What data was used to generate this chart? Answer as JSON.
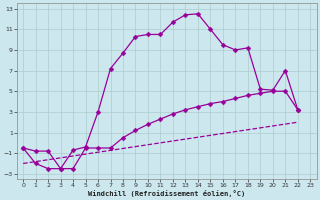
{
  "xlabel": "Windchill (Refroidissement éolien,°C)",
  "background_color": "#cce8ee",
  "grid_color": "#aacccc",
  "line_color": "#990099",
  "xlim": [
    -0.5,
    23.5
  ],
  "ylim": [
    -3.5,
    13.5
  ],
  "xticks": [
    0,
    1,
    2,
    3,
    4,
    5,
    6,
    7,
    8,
    9,
    10,
    11,
    12,
    13,
    14,
    15,
    16,
    17,
    18,
    19,
    20,
    21,
    22,
    23
  ],
  "yticks": [
    -3,
    -1,
    1,
    3,
    5,
    7,
    9,
    11,
    13
  ],
  "line1": {
    "x": [
      0,
      1,
      2,
      3,
      4,
      5,
      6,
      7,
      8,
      9,
      10,
      11,
      12,
      13,
      14,
      15,
      16,
      17,
      18,
      19,
      20,
      21,
      22
    ],
    "y": [
      -0.5,
      -2.0,
      -2.5,
      -2.5,
      -0.7,
      -0.4,
      3.0,
      7.2,
      8.7,
      10.3,
      10.5,
      10.5,
      11.7,
      12.4,
      12.5,
      11.0,
      9.5,
      9.0,
      9.2,
      5.2,
      5.1,
      7.0,
      3.2
    ]
  },
  "line2": {
    "x": [
      0,
      1,
      2,
      3,
      4,
      5,
      6,
      7,
      8,
      9,
      10,
      11,
      12,
      13,
      14,
      15,
      16,
      17,
      18,
      19,
      20,
      21,
      22
    ],
    "y": [
      -0.5,
      -0.8,
      -0.8,
      -2.5,
      -2.5,
      -0.5,
      -0.5,
      -0.5,
      0.5,
      1.2,
      1.8,
      2.3,
      2.8,
      3.2,
      3.5,
      3.8,
      4.0,
      4.3,
      4.6,
      4.8,
      5.0,
      5.0,
      3.2
    ]
  },
  "line3": {
    "x": [
      0,
      22
    ],
    "y": [
      -2.0,
      2.0
    ]
  }
}
